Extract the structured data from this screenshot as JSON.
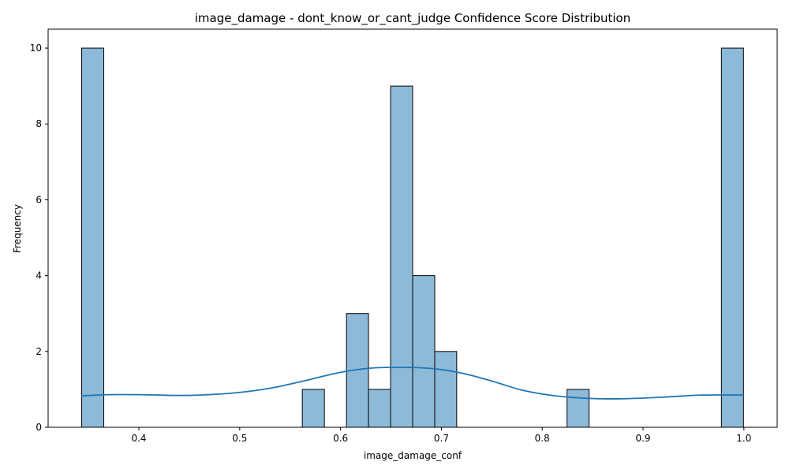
{
  "chart_data": {
    "type": "bar",
    "title": "image_damage - dont_know_or_cant_judge Confidence Score Distribution",
    "xlabel": "image_damage_conf",
    "ylabel": "Frequency",
    "xlim": [
      0.31,
      1.033
    ],
    "ylim": [
      0,
      10.5
    ],
    "xticks": [
      0.4,
      0.5,
      0.6,
      0.7,
      0.8,
      0.9,
      1.0
    ],
    "xtick_labels": [
      "0.4",
      "0.5",
      "0.6",
      "0.7",
      "0.8",
      "0.9",
      "1.0"
    ],
    "yticks": [
      0,
      2,
      4,
      6,
      8,
      10
    ],
    "ytick_labels": [
      "0",
      "2",
      "4",
      "6",
      "8",
      "10"
    ],
    "bins": [
      {
        "x0": 0.3433,
        "x1": 0.3652,
        "count": 10
      },
      {
        "x0": 0.5621,
        "x1": 0.584,
        "count": 1
      },
      {
        "x0": 0.6059,
        "x1": 0.6277,
        "count": 3
      },
      {
        "x0": 0.6277,
        "x1": 0.6496,
        "count": 1
      },
      {
        "x0": 0.6496,
        "x1": 0.6715,
        "count": 9
      },
      {
        "x0": 0.6715,
        "x1": 0.6934,
        "count": 4
      },
      {
        "x0": 0.6934,
        "x1": 0.7152,
        "count": 2
      },
      {
        "x0": 0.8246,
        "x1": 0.8465,
        "count": 1
      },
      {
        "x0": 0.9777,
        "x1": 0.9996,
        "count": 10
      }
    ],
    "kde": {
      "x": [
        0.343,
        0.37,
        0.4,
        0.44,
        0.47,
        0.5,
        0.53,
        0.56,
        0.6,
        0.63,
        0.66,
        0.69,
        0.72,
        0.75,
        0.78,
        0.81,
        0.84,
        0.87,
        0.9,
        0.93,
        0.96,
        1.0
      ],
      "y": [
        0.83,
        0.86,
        0.86,
        0.84,
        0.86,
        0.92,
        1.03,
        1.2,
        1.45,
        1.56,
        1.58,
        1.55,
        1.43,
        1.22,
        0.98,
        0.84,
        0.77,
        0.75,
        0.77,
        0.81,
        0.85,
        0.85
      ]
    },
    "colors": {
      "bar_fill": "#8ebad9",
      "bar_edge": "#000000",
      "kde": "#1f77b4"
    },
    "grid": false,
    "legend": "none"
  }
}
